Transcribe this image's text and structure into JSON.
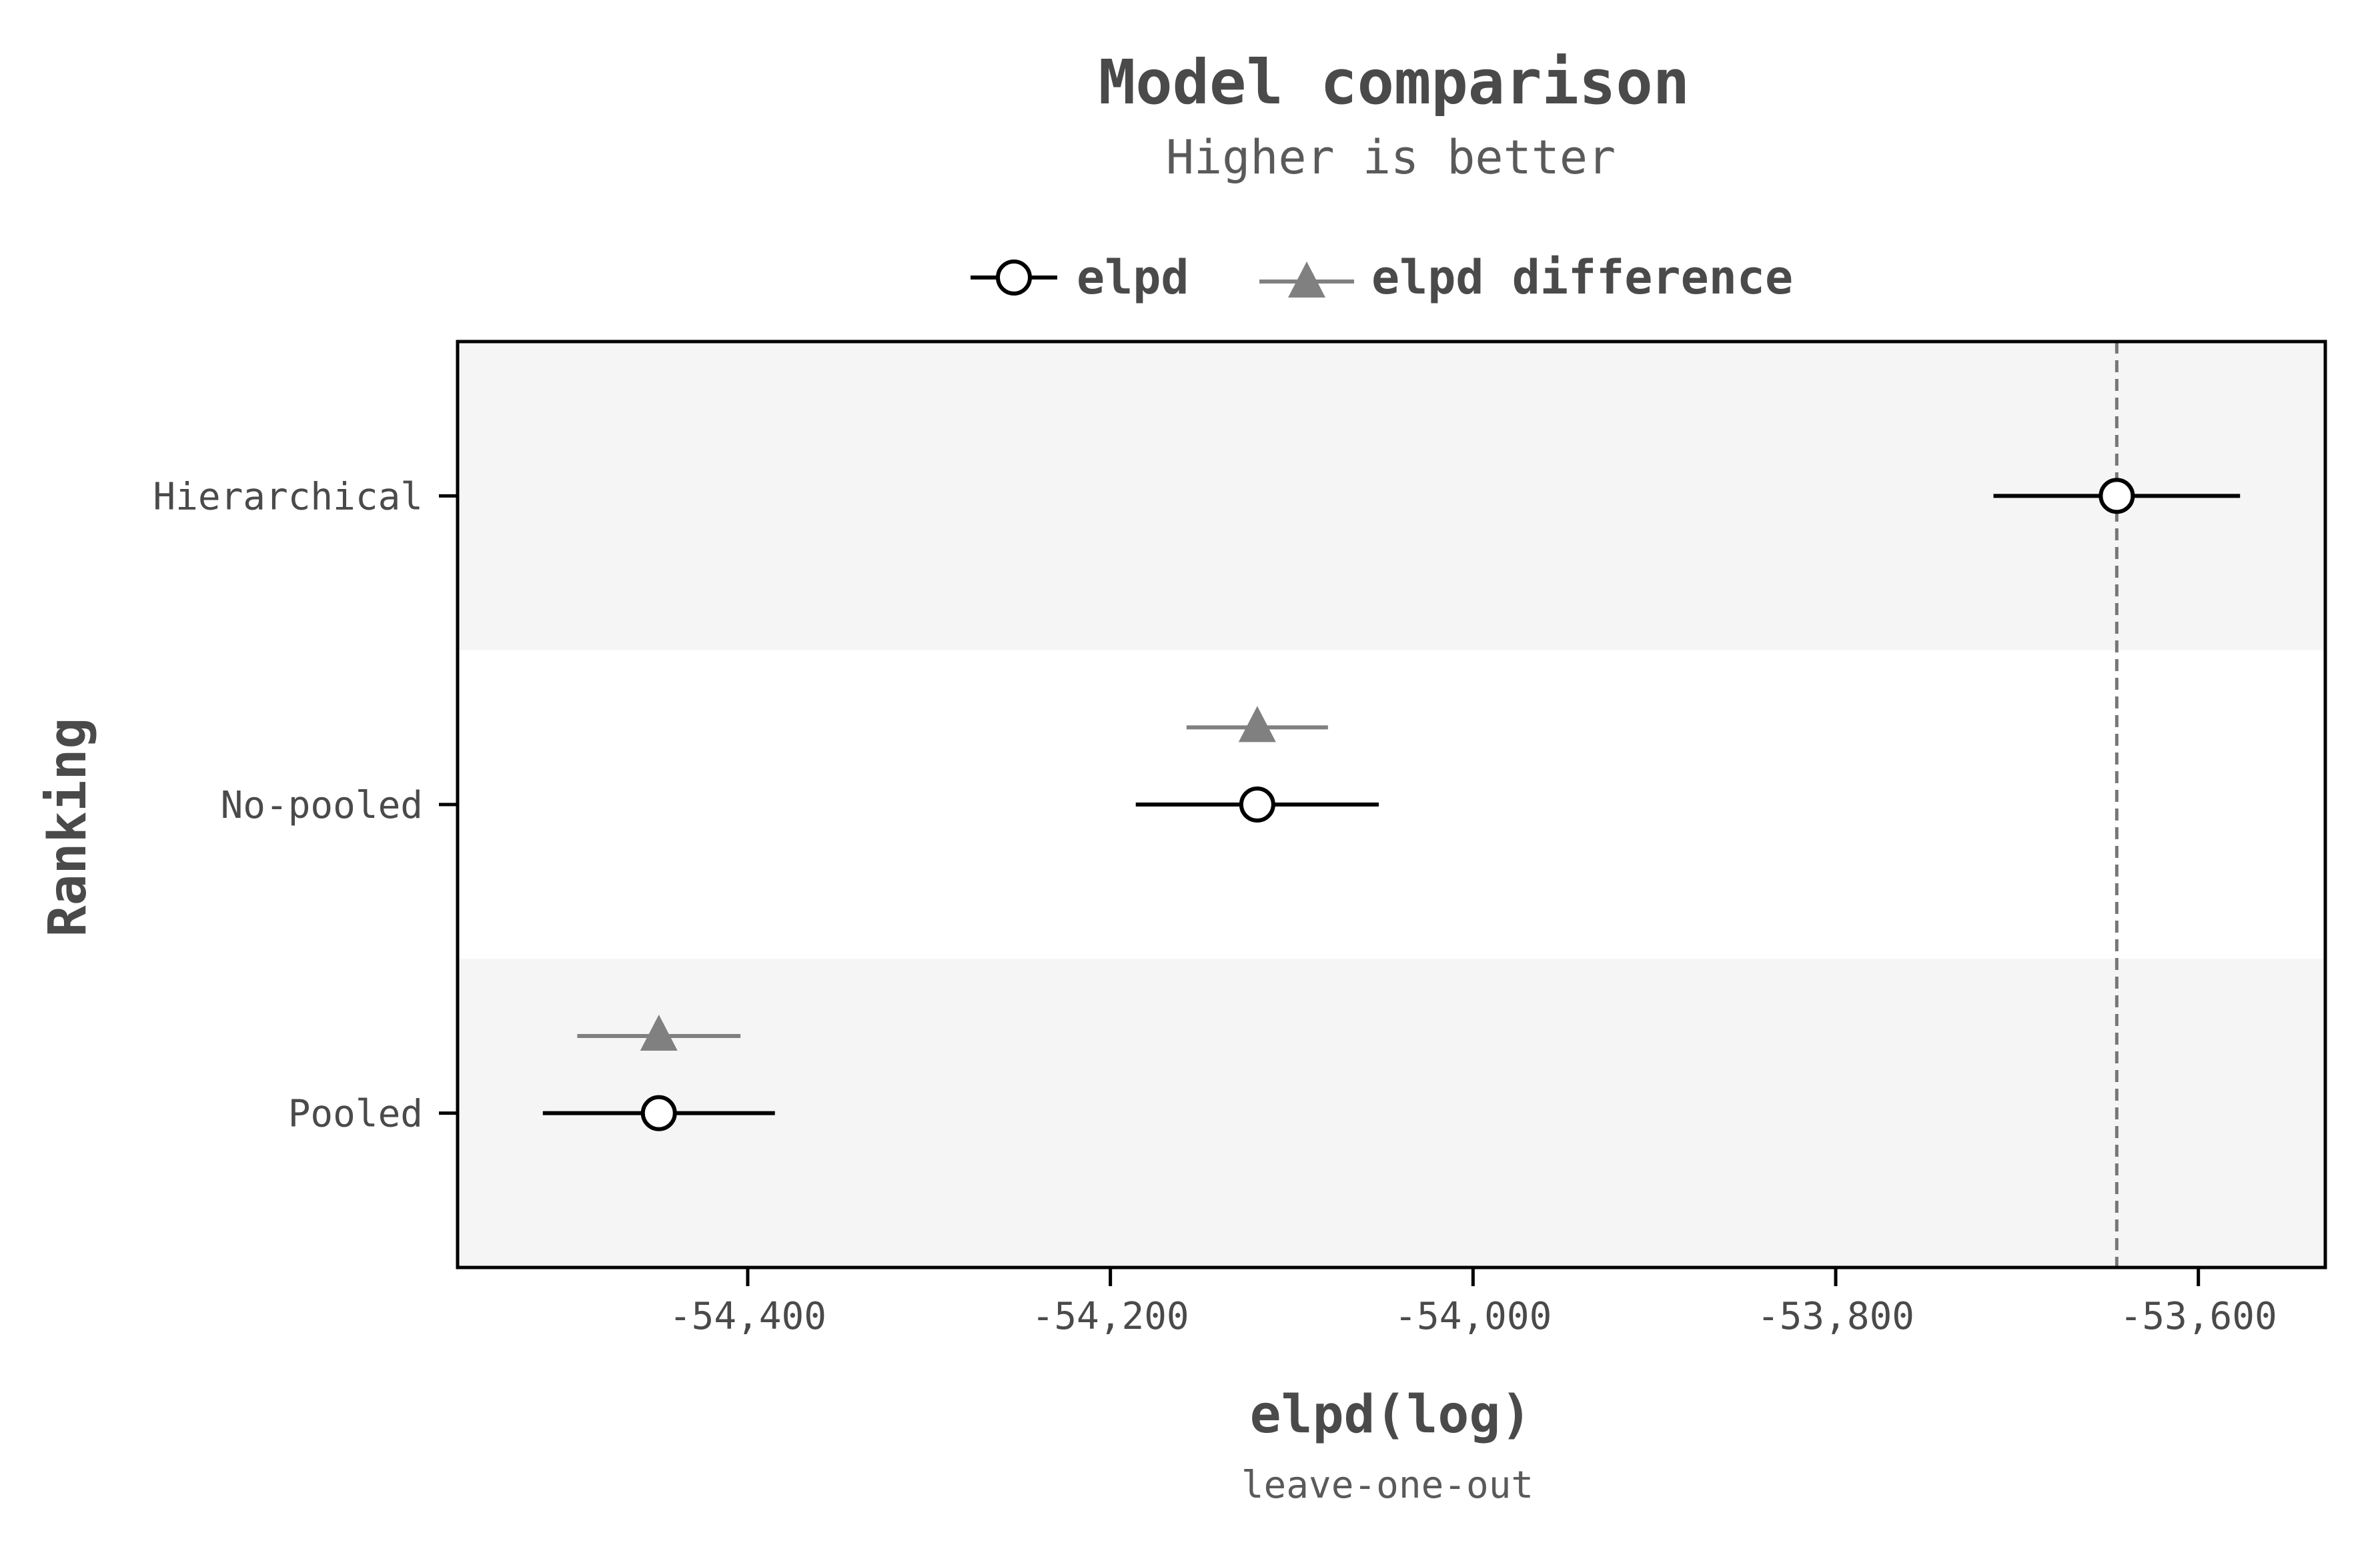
{
  "chart_data": {
    "type": "scatter",
    "title": "Model comparison",
    "subtitle": "Higher is better",
    "xlabel": "elpd(log)",
    "xlabel_sub": "leave-one-out",
    "ylabel": "Ranking",
    "xlim": [
      -54560,
      -53530
    ],
    "xticks": [
      -54400,
      -54200,
      -54000,
      -53800,
      -53600
    ],
    "xtick_labels": [
      "-54,400",
      "-54,200",
      "-54,000",
      "-53,800",
      "-53,600"
    ],
    "categories": [
      "Hierarchical",
      "No-pooled",
      "Pooled"
    ],
    "reference_line": -53645,
    "legend_position": "top",
    "grid": false,
    "series": [
      {
        "name": "elpd",
        "marker": "open-circle",
        "color": "#000000",
        "points": [
          {
            "category": "Hierarchical",
            "x": -53645,
            "lower": -53713,
            "upper": -53577
          },
          {
            "category": "No-pooled",
            "x": -54119,
            "lower": -54186,
            "upper": -54052
          },
          {
            "category": "Pooled",
            "x": -54449,
            "lower": -54513,
            "upper": -54385
          }
        ]
      },
      {
        "name": "elpd difference",
        "marker": "triangle",
        "color": "#808080",
        "points": [
          {
            "category": "No-pooled",
            "x": -54119,
            "lower": -54158,
            "upper": -54080
          },
          {
            "category": "Pooled",
            "x": -54449,
            "lower": -54494,
            "upper": -54404
          }
        ]
      }
    ],
    "band_colors": [
      "#f5f5f5",
      "#ffffff"
    ]
  }
}
